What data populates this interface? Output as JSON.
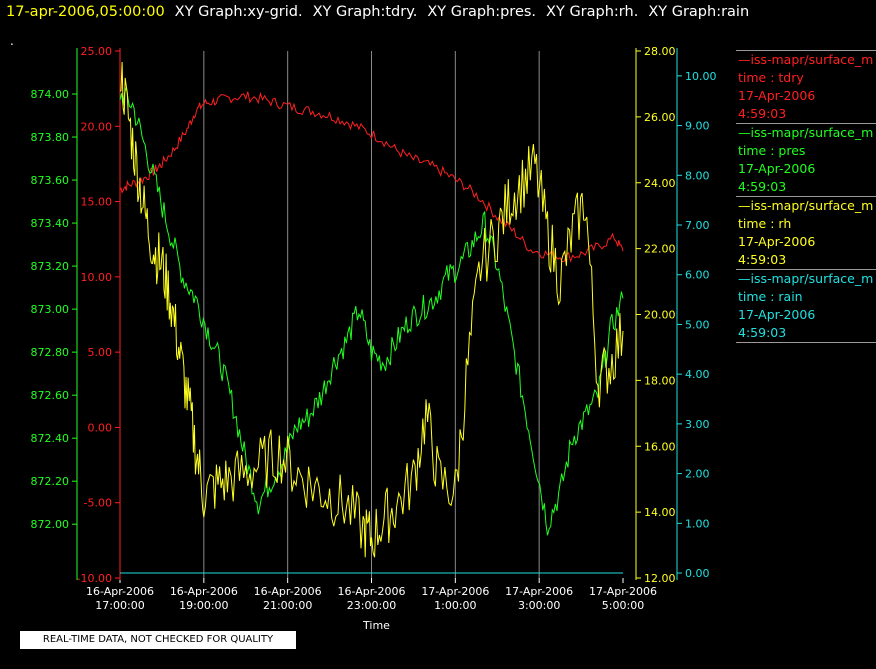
{
  "header": {
    "datetime": "17-apr-2006,05:00:00",
    "graphs": [
      "XY Graph:xy-grid.",
      "XY Graph:tdry.",
      "XY Graph:pres.",
      "XY Graph:rh.",
      "XY Graph:rain"
    ]
  },
  "marker": ".",
  "legend": [
    {
      "line": "—iss-mapr/surface_m",
      "var": "time : tdry",
      "date": "17-Apr-2006",
      "time": "4:59:03",
      "color": "#ff2020"
    },
    {
      "line": "—iss-mapr/surface_m",
      "var": "time : pres",
      "date": "17-Apr-2006",
      "time": "4:59:03",
      "color": "#20ff20"
    },
    {
      "line": "—iss-mapr/surface_m",
      "var": "time : rh",
      "date": "17-Apr-2006",
      "time": "4:59:03",
      "color": "#ffff20"
    },
    {
      "line": "—iss-mapr/surface_m",
      "var": "time : rain",
      "date": "17-Apr-2006",
      "time": "4:59:03",
      "color": "#20e0e0"
    }
  ],
  "disclaimer": "REAL-TIME DATA, NOT CHECKED FOR QUALITY",
  "chart_data": {
    "type": "line",
    "xlabel": "Time",
    "x_ticks": [
      {
        "date": "16-Apr-2006",
        "time": "17:00:00"
      },
      {
        "date": "16-Apr-2006",
        "time": "19:00:00"
      },
      {
        "date": "16-Apr-2006",
        "time": "21:00:00"
      },
      {
        "date": "16-Apr-2006",
        "time": "23:00:00"
      },
      {
        "date": "17-Apr-2006",
        "time": "1:00:00"
      },
      {
        "date": "17-Apr-2006",
        "time": "3:00:00"
      },
      {
        "date": "17-Apr-2006",
        "time": "5:00:00"
      }
    ],
    "x_range_hours": [
      0,
      12
    ],
    "grid": "vertical lines at x ticks",
    "axes": {
      "tdry": {
        "side": "left-outer",
        "color": "#ff2020",
        "range": [
          -10,
          25
        ],
        "ticks": [
          "25.00",
          "20.00",
          "15.00",
          "10.00",
          "5.00",
          "0.00",
          "-5.00",
          "-10.00"
        ]
      },
      "pres": {
        "side": "left-inner",
        "color": "#20ff20",
        "range": [
          871.75,
          874.2
        ],
        "ticks": [
          "874.00",
          "873.80",
          "873.60",
          "873.40",
          "873.20",
          "873.00",
          "872.80",
          "872.60",
          "872.40",
          "872.20",
          "872.00"
        ]
      },
      "rh": {
        "side": "right-inner",
        "color": "#ffff20",
        "range": [
          12,
          28
        ],
        "ticks": [
          "28.00",
          "26.00",
          "24.00",
          "22.00",
          "20.00",
          "18.00",
          "16.00",
          "14.00",
          "12.00"
        ]
      },
      "rain": {
        "side": "right-outer",
        "color": "#20e0e0",
        "range": [
          -0.1,
          10.5
        ],
        "ticks": [
          "10.00",
          "9.00",
          "8.00",
          "7.00",
          "6.00",
          "5.00",
          "4.00",
          "3.00",
          "2.00",
          "1.00",
          "0.00"
        ]
      }
    },
    "series": [
      {
        "name": "tdry",
        "axis": "tdry",
        "color": "#ff2020",
        "x": [
          0,
          0.2,
          0.5,
          0.8,
          1.0,
          1.3,
          1.6,
          1.8,
          2.0,
          2.3,
          2.6,
          3.0,
          3.4,
          3.8,
          4.2,
          4.6,
          5.0,
          5.4,
          5.8,
          6.2,
          6.6,
          7.0,
          7.4,
          7.8,
          8.2,
          8.6,
          9.0,
          9.4,
          9.8,
          10.2,
          10.6,
          11.0,
          11.4,
          11.8,
          12.0
        ],
        "y": [
          15.8,
          16.1,
          16.4,
          17.0,
          17.5,
          18.5,
          19.8,
          21.0,
          21.5,
          21.7,
          21.9,
          22.0,
          21.8,
          21.5,
          21.2,
          21.0,
          20.7,
          20.3,
          19.8,
          19.2,
          18.4,
          17.8,
          17.4,
          16.8,
          16.1,
          15.2,
          14.0,
          13.0,
          11.8,
          11.5,
          11.3,
          11.5,
          12.0,
          12.6,
          11.7
        ]
      },
      {
        "name": "pres",
        "axis": "pres",
        "color": "#20ff20",
        "x": [
          0,
          0.3,
          0.6,
          0.9,
          1.2,
          1.5,
          1.8,
          2.1,
          2.4,
          2.7,
          3.0,
          3.3,
          3.6,
          3.9,
          4.2,
          4.5,
          4.8,
          5.1,
          5.4,
          5.7,
          6.0,
          6.3,
          6.6,
          6.9,
          7.2,
          7.5,
          7.8,
          8.1,
          8.4,
          8.7,
          9.0,
          9.3,
          9.6,
          9.9,
          10.2,
          10.5,
          10.8,
          11.1,
          11.4,
          11.7,
          12.0
        ],
        "y": [
          874.0,
          873.95,
          873.75,
          873.55,
          873.35,
          873.15,
          873.05,
          872.9,
          872.75,
          872.55,
          872.3,
          872.1,
          872.2,
          872.3,
          872.45,
          872.5,
          872.6,
          872.75,
          872.85,
          873.0,
          872.8,
          872.75,
          872.85,
          872.95,
          873.0,
          873.05,
          873.15,
          873.2,
          873.3,
          873.4,
          873.2,
          872.9,
          872.6,
          872.3,
          872.0,
          872.15,
          872.4,
          872.5,
          872.6,
          872.9,
          873.05
        ]
      },
      {
        "name": "rh",
        "axis": "rh",
        "color": "#ffff20",
        "x": [
          0,
          0.2,
          0.4,
          0.6,
          0.8,
          1.0,
          1.2,
          1.4,
          1.6,
          1.8,
          2.0,
          2.3,
          2.6,
          3.0,
          3.4,
          3.8,
          4.2,
          4.6,
          5.0,
          5.4,
          5.8,
          6.0,
          6.3,
          6.6,
          7.0,
          7.3,
          7.6,
          8.0,
          8.3,
          8.6,
          9.0,
          9.3,
          9.6,
          9.9,
          10.2,
          10.5,
          10.8,
          11.1,
          11.4,
          11.7,
          12.0
        ],
        "y": [
          27.5,
          26.0,
          24.5,
          23.0,
          22.0,
          21.5,
          20.5,
          19.0,
          17.5,
          16.0,
          14.5,
          14.8,
          15.0,
          15.2,
          15.5,
          15.8,
          15.2,
          14.8,
          14.5,
          14.2,
          13.5,
          13.2,
          13.8,
          14.2,
          15.0,
          17.0,
          15.0,
          14.6,
          18.5,
          21.5,
          22.5,
          23.5,
          24.0,
          24.5,
          22.5,
          21.0,
          22.5,
          23.5,
          18.0,
          18.5,
          19.5
        ]
      },
      {
        "name": "rain",
        "axis": "rain",
        "color": "#20e0e0",
        "x": [
          0,
          12
        ],
        "y": [
          0.0,
          0.0
        ]
      }
    ]
  }
}
